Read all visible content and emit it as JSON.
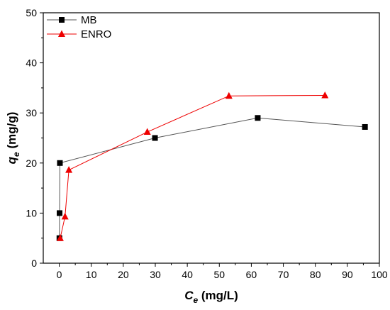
{
  "chart_data": {
    "type": "line",
    "xlabel": {
      "main": "C",
      "sub": "e",
      "unit": " (mg/L)"
    },
    "ylabel": {
      "main": "q",
      "sub": "e",
      "unit": " (mg/g)"
    },
    "xlim": [
      -5,
      100
    ],
    "ylim": [
      0,
      50
    ],
    "xticks": [
      0,
      10,
      20,
      30,
      40,
      50,
      60,
      70,
      80,
      90,
      100
    ],
    "yticks": [
      0,
      10,
      20,
      30,
      40,
      50
    ],
    "grid": false,
    "legend_position": "top-left",
    "series": [
      {
        "name": "MB",
        "color": "#000000",
        "line_color": "#555555",
        "marker": "square",
        "x": [
          0.05,
          0.1,
          0.2,
          29.9,
          62.0,
          95.5
        ],
        "y": [
          5.0,
          10.0,
          20.0,
          25.0,
          29.0,
          27.2
        ]
      },
      {
        "name": "ENRO",
        "color": "#ee0000",
        "line_color": "#ee0000",
        "marker": "triangle",
        "x": [
          0.3,
          1.8,
          3.0,
          27.5,
          53.0,
          83.0
        ],
        "y": [
          5.0,
          9.3,
          18.6,
          26.2,
          33.4,
          33.5
        ]
      }
    ]
  }
}
